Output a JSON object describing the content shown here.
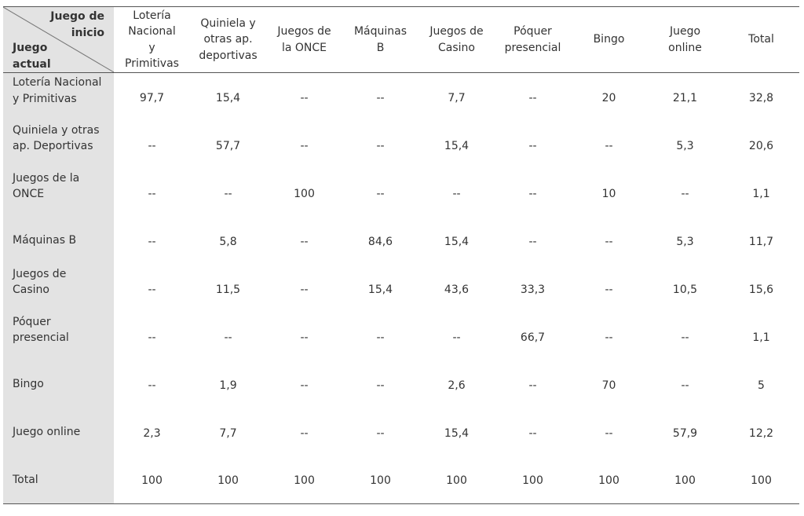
{
  "corner": {
    "top_right": [
      "Juego de",
      "inicio"
    ],
    "bottom_left": [
      "Juego",
      "actual"
    ]
  },
  "columns": [
    [
      "Lotería",
      "Nacional",
      "y",
      "Primitivas"
    ],
    [
      "Quiniela y",
      "otras ap.",
      "deportivas"
    ],
    [
      "Juegos de",
      "la ONCE"
    ],
    [
      "Máquinas",
      "B"
    ],
    [
      "Juegos de",
      "Casino"
    ],
    [
      "Póquer",
      "presencial"
    ],
    [
      "Bingo"
    ],
    [
      "Juego",
      "online"
    ],
    [
      "Total"
    ]
  ],
  "rows": [
    {
      "label": [
        "Lotería Nacional",
        "y Primitivas"
      ],
      "values": [
        "97,7",
        "15,4",
        "--",
        "--",
        "7,7",
        "--",
        "20",
        "21,1",
        "32,8"
      ]
    },
    {
      "label": [
        "Quiniela y otras",
        "ap. Deportivas"
      ],
      "values": [
        "--",
        "57,7",
        "--",
        "--",
        "15,4",
        "--",
        "--",
        "5,3",
        "20,6"
      ]
    },
    {
      "label": [
        "Juegos de la",
        "ONCE"
      ],
      "values": [
        "--",
        "--",
        "100",
        "--",
        "--",
        "--",
        "10",
        "--",
        "1,1"
      ]
    },
    {
      "label": [
        "Máquinas B"
      ],
      "values": [
        "--",
        "5,8",
        "--",
        "84,6",
        "15,4",
        "--",
        "--",
        "5,3",
        "11,7"
      ]
    },
    {
      "label": [
        "Juegos de",
        "Casino"
      ],
      "values": [
        "--",
        "11,5",
        "--",
        "15,4",
        "43,6",
        "33,3",
        "--",
        "10,5",
        "15,6"
      ]
    },
    {
      "label": [
        "Póquer",
        "presencial"
      ],
      "values": [
        "--",
        "--",
        "--",
        "--",
        "--",
        "66,7",
        "--",
        "--",
        "1,1"
      ]
    },
    {
      "label": [
        "Bingo"
      ],
      "values": [
        "--",
        "1,9",
        "--",
        "--",
        "2,6",
        "--",
        "70",
        "--",
        "5"
      ]
    },
    {
      "label": [
        "Juego online"
      ],
      "values": [
        "2,3",
        "7,7",
        "--",
        "--",
        "15,4",
        "--",
        "--",
        "57,9",
        "12,2"
      ]
    },
    {
      "label": [
        "Total"
      ],
      "values": [
        "100",
        "100",
        "100",
        "100",
        "100",
        "100",
        "100",
        "100",
        "100"
      ]
    }
  ]
}
